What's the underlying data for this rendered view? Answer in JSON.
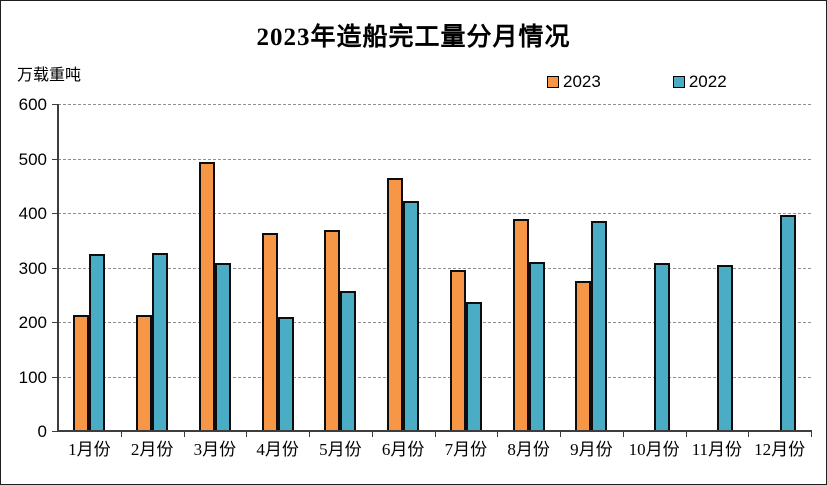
{
  "title": "2023年造船完工量分月情况",
  "unit_label": "万载重吨",
  "colors": {
    "series_2023": "#F79646",
    "series_2022": "#4BACC6",
    "axis": "#3d3d3d",
    "gridline": "#8f8f8f",
    "bar_border": "#0d0d0d",
    "text": "#000000",
    "background": "#ffffff"
  },
  "chart_data": {
    "type": "bar",
    "title": "2023年造船完工量分月情况",
    "xlabel": "",
    "ylabel": "万载重吨",
    "categories": [
      "1月份",
      "2月份",
      "3月份",
      "4月份",
      "5月份",
      "6月份",
      "7月份",
      "8月份",
      "9月份",
      "10月份",
      "11月份",
      "12月份"
    ],
    "series": [
      {
        "name": "2023",
        "color": "#F79646",
        "values": [
          212,
          212,
          494,
          363,
          368,
          465,
          296,
          389,
          276,
          null,
          null,
          null
        ]
      },
      {
        "name": "2022",
        "color": "#4BACC6",
        "values": [
          325,
          327,
          308,
          210,
          257,
          422,
          236,
          310,
          386,
          308,
          304,
          397
        ]
      }
    ],
    "ylim": [
      0,
      600
    ],
    "yticks": [
      0,
      100,
      200,
      300,
      400,
      500,
      600
    ],
    "grid": "horizontal-dashed",
    "legend_position": "top-right"
  }
}
